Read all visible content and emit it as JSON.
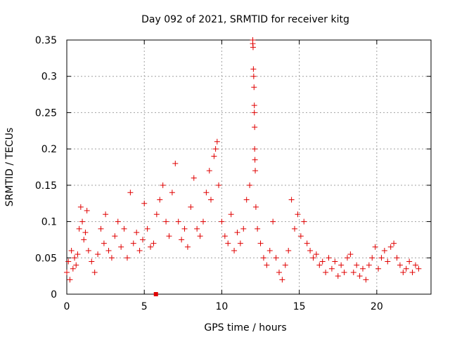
{
  "chart_data": {
    "type": "scatter",
    "title": "Day 092 of 2021, SRMTID for receiver kitg",
    "xlabel": "GPS time / hours",
    "ylabel": "SRMTID / TECUs",
    "xlim": [
      0,
      23.5
    ],
    "ylim": [
      0,
      0.35
    ],
    "x_ticks": [
      0,
      5,
      10,
      15,
      20
    ],
    "x_tick_labels": [
      "0",
      "5",
      "10",
      "15",
      "20"
    ],
    "y_ticks": [
      0,
      0.05,
      0.1,
      0.15,
      0.2,
      0.25,
      0.3,
      0.35
    ],
    "y_tick_labels": [
      "0",
      "0.05",
      "0.1",
      "0.15",
      "0.2",
      "0.25",
      "0.3",
      "0.35"
    ],
    "grid": true,
    "marker": "plus",
    "color": "#e00000",
    "series": [
      {
        "name": "SRMTID",
        "points": [
          [
            0.0,
            0.03
          ],
          [
            0.1,
            0.045
          ],
          [
            0.2,
            0.02
          ],
          [
            0.3,
            0.06
          ],
          [
            0.4,
            0.035
          ],
          [
            0.5,
            0.05
          ],
          [
            0.6,
            0.04
          ],
          [
            0.7,
            0.055
          ],
          [
            0.8,
            0.09
          ],
          [
            0.9,
            0.12
          ],
          [
            1.0,
            0.1
          ],
          [
            1.1,
            0.075
          ],
          [
            1.2,
            0.085
          ],
          [
            1.3,
            0.115
          ],
          [
            1.4,
            0.06
          ],
          [
            1.6,
            0.045
          ],
          [
            1.8,
            0.03
          ],
          [
            2.0,
            0.055
          ],
          [
            2.2,
            0.09
          ],
          [
            2.4,
            0.07
          ],
          [
            2.5,
            0.11
          ],
          [
            2.7,
            0.06
          ],
          [
            2.9,
            0.05
          ],
          [
            3.1,
            0.08
          ],
          [
            3.3,
            0.1
          ],
          [
            3.5,
            0.065
          ],
          [
            3.7,
            0.09
          ],
          [
            3.9,
            0.05
          ],
          [
            4.1,
            0.14
          ],
          [
            4.3,
            0.07
          ],
          [
            4.5,
            0.085
          ],
          [
            4.7,
            0.06
          ],
          [
            4.9,
            0.075
          ],
          [
            5.0,
            0.125
          ],
          [
            5.2,
            0.09
          ],
          [
            5.4,
            0.065
          ],
          [
            5.6,
            0.07
          ],
          [
            5.8,
            0.11
          ],
          [
            6.0,
            0.13
          ],
          [
            6.2,
            0.15
          ],
          [
            6.4,
            0.1
          ],
          [
            6.6,
            0.08
          ],
          [
            6.8,
            0.14
          ],
          [
            7.0,
            0.18
          ],
          [
            7.2,
            0.1
          ],
          [
            7.4,
            0.075
          ],
          [
            7.6,
            0.09
          ],
          [
            7.8,
            0.065
          ],
          [
            8.0,
            0.12
          ],
          [
            8.2,
            0.16
          ],
          [
            8.4,
            0.09
          ],
          [
            8.6,
            0.08
          ],
          [
            8.8,
            0.1
          ],
          [
            9.0,
            0.14
          ],
          [
            9.2,
            0.17
          ],
          [
            9.3,
            0.13
          ],
          [
            9.5,
            0.19
          ],
          [
            9.6,
            0.2
          ],
          [
            9.7,
            0.21
          ],
          [
            9.8,
            0.15
          ],
          [
            10.0,
            0.1
          ],
          [
            10.2,
            0.08
          ],
          [
            10.4,
            0.07
          ],
          [
            10.6,
            0.11
          ],
          [
            10.8,
            0.06
          ],
          [
            11.0,
            0.085
          ],
          [
            11.2,
            0.07
          ],
          [
            11.4,
            0.09
          ],
          [
            11.6,
            0.13
          ],
          [
            11.8,
            0.15
          ],
          [
            12.0,
            0.35
          ],
          [
            12.0,
            0.345
          ],
          [
            12.02,
            0.34
          ],
          [
            12.04,
            0.31
          ],
          [
            12.06,
            0.3
          ],
          [
            12.08,
            0.285
          ],
          [
            12.1,
            0.26
          ],
          [
            12.1,
            0.25
          ],
          [
            12.12,
            0.23
          ],
          [
            12.12,
            0.2
          ],
          [
            12.14,
            0.185
          ],
          [
            12.16,
            0.17
          ],
          [
            12.2,
            0.12
          ],
          [
            12.3,
            0.09
          ],
          [
            12.5,
            0.07
          ],
          [
            12.7,
            0.05
          ],
          [
            12.9,
            0.04
          ],
          [
            13.1,
            0.06
          ],
          [
            13.3,
            0.1
          ],
          [
            13.5,
            0.05
          ],
          [
            13.7,
            0.03
          ],
          [
            13.9,
            0.02
          ],
          [
            14.1,
            0.04
          ],
          [
            14.3,
            0.06
          ],
          [
            14.5,
            0.13
          ],
          [
            14.7,
            0.09
          ],
          [
            14.9,
            0.11
          ],
          [
            15.1,
            0.08
          ],
          [
            15.3,
            0.1
          ],
          [
            15.5,
            0.07
          ],
          [
            15.7,
            0.06
          ],
          [
            15.9,
            0.05
          ],
          [
            16.1,
            0.055
          ],
          [
            16.3,
            0.04
          ],
          [
            16.5,
            0.045
          ],
          [
            16.7,
            0.03
          ],
          [
            16.9,
            0.05
          ],
          [
            17.1,
            0.035
          ],
          [
            17.3,
            0.045
          ],
          [
            17.5,
            0.025
          ],
          [
            17.7,
            0.04
          ],
          [
            17.9,
            0.03
          ],
          [
            18.1,
            0.05
          ],
          [
            18.3,
            0.055
          ],
          [
            18.5,
            0.03
          ],
          [
            18.7,
            0.04
          ],
          [
            18.9,
            0.025
          ],
          [
            19.1,
            0.035
          ],
          [
            19.3,
            0.02
          ],
          [
            19.5,
            0.04
          ],
          [
            19.7,
            0.05
          ],
          [
            19.9,
            0.065
          ],
          [
            20.1,
            0.035
          ],
          [
            20.3,
            0.05
          ],
          [
            20.5,
            0.06
          ],
          [
            20.7,
            0.045
          ],
          [
            20.9,
            0.065
          ],
          [
            21.1,
            0.07
          ],
          [
            21.3,
            0.05
          ],
          [
            21.5,
            0.04
          ],
          [
            21.7,
            0.03
          ],
          [
            21.9,
            0.035
          ],
          [
            22.1,
            0.045
          ],
          [
            22.3,
            0.03
          ],
          [
            22.5,
            0.04
          ],
          [
            22.7,
            0.035
          ]
        ]
      }
    ],
    "isolated_point": [
      5.75,
      0.0
    ]
  }
}
